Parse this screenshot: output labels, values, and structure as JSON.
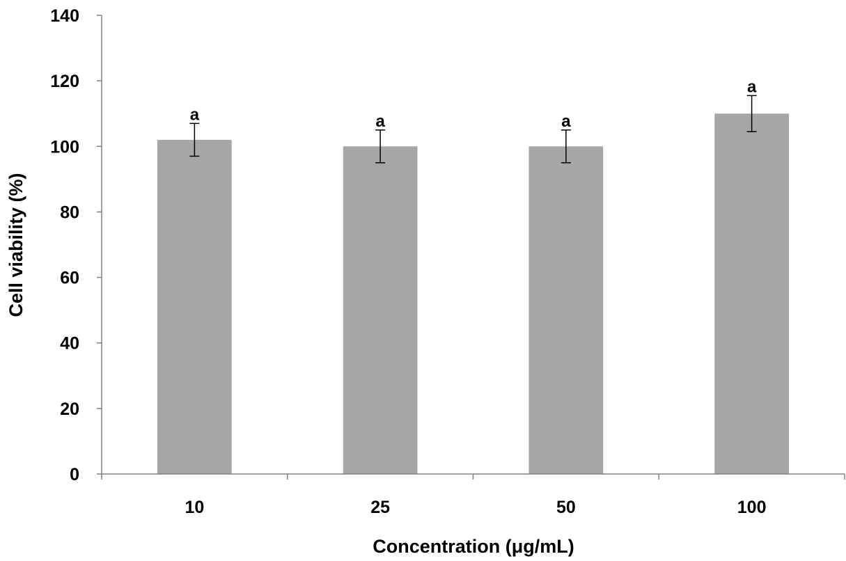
{
  "chart_data": {
    "type": "bar",
    "title": "",
    "xlabel": "Concentration (μg/mL)",
    "ylabel": "Cell viability  (%)",
    "categories": [
      "10",
      "25",
      "50",
      "100"
    ],
    "values": [
      102,
      100,
      100,
      110
    ],
    "errors": [
      5,
      5,
      5,
      5.5
    ],
    "annotations": [
      "a",
      "a",
      "a",
      "a"
    ],
    "ylim": [
      0,
      140
    ],
    "yticks": [
      0,
      20,
      40,
      60,
      80,
      100,
      120,
      140
    ],
    "bar_color": "#a6a6a6",
    "grid": false,
    "legend": "none"
  }
}
